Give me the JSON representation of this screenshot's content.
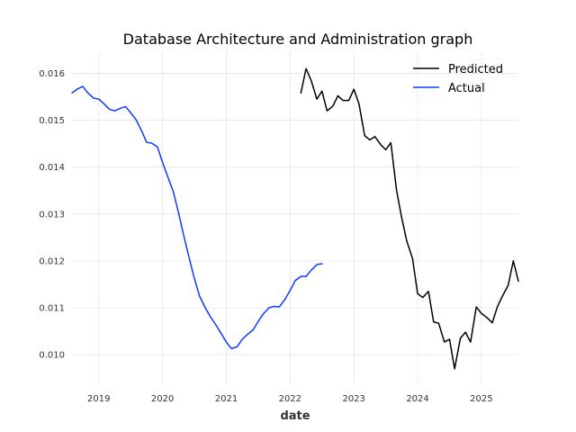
{
  "chart_data": {
    "type": "line",
    "title": "Database Architecture and Administration graph",
    "xlabel": "date",
    "ylabel": "",
    "xlim": [
      2018.58,
      2025.58
    ],
    "ylim": [
      0.00935,
      0.01645
    ],
    "grid": true,
    "legend_position": "upper-right",
    "x_ticks": [
      2019,
      2020,
      2021,
      2022,
      2023,
      2024,
      2025
    ],
    "x_tick_labels": [
      "2019",
      "2020",
      "2021",
      "2022",
      "2023",
      "2024",
      "2025"
    ],
    "y_ticks": [
      0.01,
      0.011,
      0.012,
      0.013,
      0.014,
      0.015,
      0.016
    ],
    "y_tick_labels": [
      "0.010",
      "0.011",
      "0.012",
      "0.013",
      "0.014",
      "0.015",
      "0.016"
    ],
    "series": [
      {
        "name": "Predicted",
        "color": "#000000",
        "x": [
          2022.17,
          2022.25,
          2022.33,
          2022.42,
          2022.5,
          2022.58,
          2022.67,
          2022.75,
          2022.83,
          2022.92,
          2023.0,
          2023.08,
          2023.17,
          2023.25,
          2023.33,
          2023.42,
          2023.5,
          2023.58,
          2023.67,
          2023.75,
          2023.83,
          2023.92,
          2024.0,
          2024.08,
          2024.17,
          2024.25,
          2024.33,
          2024.42,
          2024.5,
          2024.58,
          2024.67,
          2024.75,
          2024.83,
          2024.92,
          2025.0,
          2025.08,
          2025.17,
          2025.25,
          2025.33,
          2025.42,
          2025.5,
          2025.58
        ],
        "values": [
          0.01558,
          0.0161,
          0.01585,
          0.01545,
          0.01562,
          0.0152,
          0.0153,
          0.01552,
          0.01542,
          0.01542,
          0.01566,
          0.01535,
          0.01467,
          0.01458,
          0.01465,
          0.01448,
          0.01437,
          0.01452,
          0.0135,
          0.01292,
          0.01242,
          0.01205,
          0.0113,
          0.01122,
          0.01135,
          0.0107,
          0.01067,
          0.01027,
          0.01033,
          0.0097,
          0.01035,
          0.01048,
          0.01027,
          0.01102,
          0.01088,
          0.0108,
          0.01068,
          0.01102,
          0.01125,
          0.01148,
          0.012,
          0.01157
        ]
      },
      {
        "name": "Actual",
        "color": "#0a3cff",
        "x": [
          2018.58,
          2018.67,
          2018.75,
          2018.83,
          2018.92,
          2019.0,
          2019.08,
          2019.17,
          2019.25,
          2019.33,
          2019.42,
          2019.5,
          2019.58,
          2019.67,
          2019.75,
          2019.83,
          2019.92,
          2020.0,
          2020.08,
          2020.17,
          2020.25,
          2020.33,
          2020.42,
          2020.5,
          2020.58,
          2020.67,
          2020.75,
          2020.83,
          2020.92,
          2021.0,
          2021.08,
          2021.17,
          2021.25,
          2021.33,
          2021.42,
          2021.5,
          2021.58,
          2021.67,
          2021.75,
          2021.83,
          2021.92,
          2022.0,
          2022.08,
          2022.17,
          2022.25,
          2022.33,
          2022.42,
          2022.5
        ],
        "values": [
          0.01558,
          0.01567,
          0.01572,
          0.01558,
          0.01547,
          0.01545,
          0.01535,
          0.01523,
          0.0152,
          0.01525,
          0.01529,
          0.01516,
          0.01502,
          0.01478,
          0.01453,
          0.01451,
          0.01443,
          0.0141,
          0.0138,
          0.01347,
          0.01303,
          0.01255,
          0.01205,
          0.01162,
          0.01125,
          0.011,
          0.01081,
          0.01065,
          0.01045,
          0.01027,
          0.01013,
          0.01017,
          0.01033,
          0.01043,
          0.01053,
          0.01071,
          0.01087,
          0.011,
          0.01103,
          0.01102,
          0.01118,
          0.01137,
          0.01158,
          0.01167,
          0.01167,
          0.0118,
          0.01192,
          0.01194
        ]
      }
    ]
  }
}
